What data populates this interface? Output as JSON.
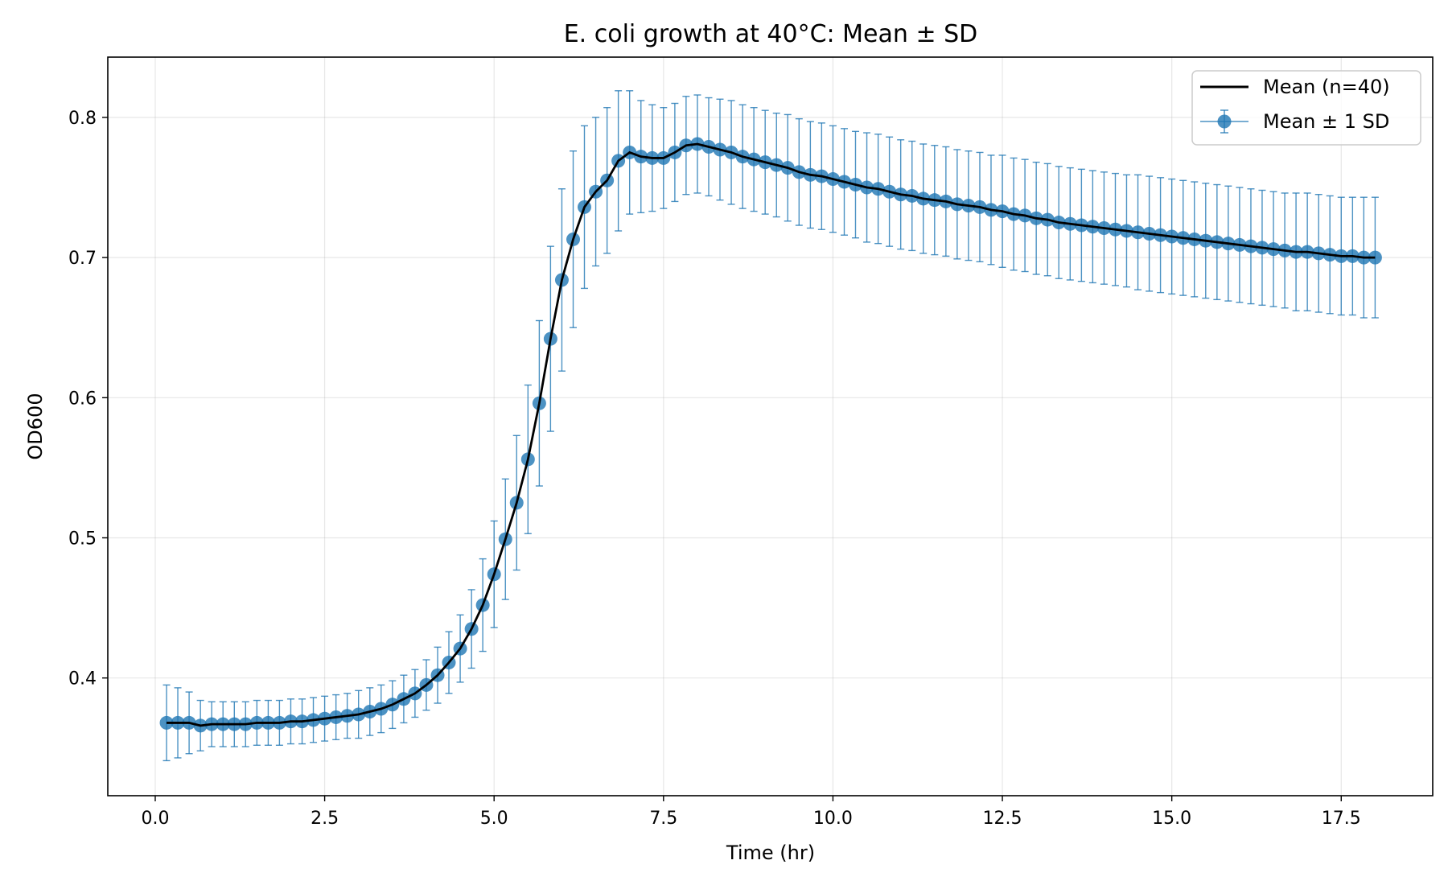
{
  "chart_data": {
    "type": "line",
    "title": "E. coli growth at 40°C: Mean ± SD",
    "xlabel": "Time (hr)",
    "ylabel": "OD600",
    "xlim": [
      -0.7,
      18.85
    ],
    "ylim": [
      0.316,
      0.843
    ],
    "xticks": [
      "0.0",
      "2.5",
      "5.0",
      "7.5",
      "10.0",
      "12.5",
      "15.0",
      "17.5"
    ],
    "yticks": [
      "0.4",
      "0.5",
      "0.6",
      "0.7",
      "0.8"
    ],
    "grid": true,
    "legend_position": "top-right",
    "x": [
      0.167,
      0.333,
      0.5,
      0.667,
      0.833,
      1.0,
      1.167,
      1.333,
      1.5,
      1.667,
      1.833,
      2.0,
      2.167,
      2.333,
      2.5,
      2.667,
      2.833,
      3.0,
      3.167,
      3.333,
      3.5,
      3.667,
      3.833,
      4.0,
      4.167,
      4.333,
      4.5,
      4.667,
      4.833,
      5.0,
      5.167,
      5.333,
      5.5,
      5.667,
      5.833,
      6.0,
      6.167,
      6.333,
      6.5,
      6.667,
      6.833,
      7.0,
      7.167,
      7.333,
      7.5,
      7.667,
      7.833,
      8.0,
      8.167,
      8.333,
      8.5,
      8.667,
      8.833,
      9.0,
      9.167,
      9.333,
      9.5,
      9.667,
      9.833,
      10.0,
      10.167,
      10.333,
      10.5,
      10.667,
      10.833,
      11.0,
      11.167,
      11.333,
      11.5,
      11.667,
      11.833,
      12.0,
      12.167,
      12.333,
      12.5,
      12.667,
      12.833,
      13.0,
      13.167,
      13.333,
      13.5,
      13.667,
      13.833,
      14.0,
      14.167,
      14.333,
      14.5,
      14.667,
      14.833,
      15.0,
      15.167,
      15.333,
      15.5,
      15.667,
      15.833,
      16.0,
      16.167,
      16.333,
      16.5,
      16.667,
      16.833,
      17.0,
      17.167,
      17.333,
      17.5,
      17.667,
      17.833,
      18.0
    ],
    "series": [
      {
        "name": "Mean (n=40)",
        "color": "#000000",
        "values": [
          0.368,
          0.368,
          0.368,
          0.366,
          0.367,
          0.367,
          0.367,
          0.367,
          0.368,
          0.368,
          0.368,
          0.369,
          0.369,
          0.37,
          0.371,
          0.372,
          0.373,
          0.374,
          0.376,
          0.378,
          0.381,
          0.385,
          0.389,
          0.395,
          0.402,
          0.411,
          0.421,
          0.435,
          0.452,
          0.474,
          0.499,
          0.525,
          0.556,
          0.596,
          0.642,
          0.684,
          0.713,
          0.736,
          0.747,
          0.755,
          0.769,
          0.775,
          0.772,
          0.771,
          0.771,
          0.775,
          0.78,
          0.781,
          0.779,
          0.777,
          0.775,
          0.772,
          0.77,
          0.768,
          0.766,
          0.764,
          0.761,
          0.759,
          0.758,
          0.756,
          0.754,
          0.752,
          0.75,
          0.749,
          0.747,
          0.745,
          0.744,
          0.742,
          0.741,
          0.74,
          0.738,
          0.737,
          0.736,
          0.734,
          0.733,
          0.731,
          0.73,
          0.728,
          0.727,
          0.725,
          0.724,
          0.723,
          0.722,
          0.721,
          0.72,
          0.719,
          0.718,
          0.717,
          0.716,
          0.715,
          0.714,
          0.713,
          0.712,
          0.711,
          0.71,
          0.709,
          0.708,
          0.707,
          0.706,
          0.705,
          0.704,
          0.704,
          0.703,
          0.702,
          0.701,
          0.701,
          0.7,
          0.7
        ]
      },
      {
        "name": "Mean ± 1 SD",
        "color": "#1f77b4",
        "values": [
          0.368,
          0.368,
          0.368,
          0.366,
          0.367,
          0.367,
          0.367,
          0.367,
          0.368,
          0.368,
          0.368,
          0.369,
          0.369,
          0.37,
          0.371,
          0.372,
          0.373,
          0.374,
          0.376,
          0.378,
          0.381,
          0.385,
          0.389,
          0.395,
          0.402,
          0.411,
          0.421,
          0.435,
          0.452,
          0.474,
          0.499,
          0.525,
          0.556,
          0.596,
          0.642,
          0.684,
          0.713,
          0.736,
          0.747,
          0.755,
          0.769,
          0.775,
          0.772,
          0.771,
          0.771,
          0.775,
          0.78,
          0.781,
          0.779,
          0.777,
          0.775,
          0.772,
          0.77,
          0.768,
          0.766,
          0.764,
          0.761,
          0.759,
          0.758,
          0.756,
          0.754,
          0.752,
          0.75,
          0.749,
          0.747,
          0.745,
          0.744,
          0.742,
          0.741,
          0.74,
          0.738,
          0.737,
          0.736,
          0.734,
          0.733,
          0.731,
          0.73,
          0.728,
          0.727,
          0.725,
          0.724,
          0.723,
          0.722,
          0.721,
          0.72,
          0.719,
          0.718,
          0.717,
          0.716,
          0.715,
          0.714,
          0.713,
          0.712,
          0.711,
          0.71,
          0.709,
          0.708,
          0.707,
          0.706,
          0.705,
          0.704,
          0.704,
          0.703,
          0.702,
          0.701,
          0.701,
          0.7,
          0.7
        ],
        "sd": [
          0.027,
          0.025,
          0.022,
          0.018,
          0.016,
          0.016,
          0.016,
          0.016,
          0.016,
          0.016,
          0.016,
          0.016,
          0.016,
          0.016,
          0.016,
          0.016,
          0.016,
          0.017,
          0.017,
          0.017,
          0.017,
          0.017,
          0.017,
          0.018,
          0.02,
          0.022,
          0.024,
          0.028,
          0.033,
          0.038,
          0.043,
          0.048,
          0.053,
          0.059,
          0.066,
          0.065,
          0.063,
          0.058,
          0.053,
          0.052,
          0.05,
          0.044,
          0.04,
          0.038,
          0.036,
          0.035,
          0.035,
          0.035,
          0.035,
          0.036,
          0.037,
          0.037,
          0.037,
          0.037,
          0.037,
          0.038,
          0.038,
          0.038,
          0.038,
          0.038,
          0.038,
          0.038,
          0.039,
          0.039,
          0.039,
          0.039,
          0.039,
          0.039,
          0.039,
          0.039,
          0.039,
          0.039,
          0.039,
          0.039,
          0.04,
          0.04,
          0.04,
          0.04,
          0.04,
          0.04,
          0.04,
          0.04,
          0.04,
          0.04,
          0.04,
          0.04,
          0.041,
          0.041,
          0.041,
          0.041,
          0.041,
          0.041,
          0.041,
          0.041,
          0.041,
          0.041,
          0.041,
          0.041,
          0.041,
          0.041,
          0.042,
          0.042,
          0.042,
          0.042,
          0.042,
          0.042,
          0.043,
          0.043
        ]
      }
    ]
  }
}
